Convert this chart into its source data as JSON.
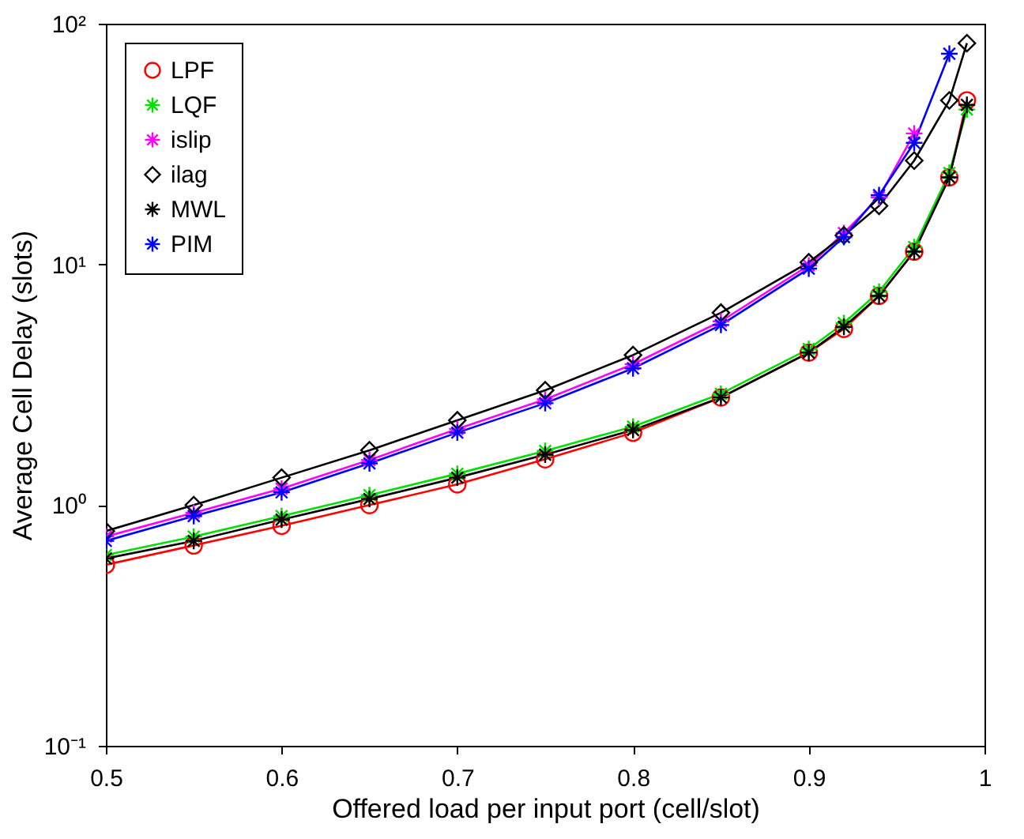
{
  "chart_data": {
    "type": "line",
    "xlabel": "Offered load per input port (cell/slot)",
    "ylabel": "Average Cell Delay (slots)",
    "x": [
      0.5,
      0.55,
      0.6,
      0.65,
      0.7,
      0.75,
      0.8,
      0.85,
      0.9,
      0.92,
      0.94,
      0.96,
      0.98,
      0.99
    ],
    "series": [
      {
        "name": "LPF",
        "color": "#ff0000",
        "marker": "circle",
        "values": [
          0.565,
          0.68,
          0.82,
          1.0,
          1.22,
          1.55,
          2.0,
          2.8,
          4.3,
          5.4,
          7.4,
          11.3,
          23,
          48
        ]
      },
      {
        "name": "LQF",
        "color": "#00e000",
        "marker": "cross",
        "values": [
          0.62,
          0.74,
          0.9,
          1.1,
          1.35,
          1.68,
          2.12,
          2.9,
          4.45,
          5.7,
          7.7,
          11.8,
          24,
          44
        ]
      },
      {
        "name": "islip",
        "color": "#ff00ff",
        "marker": "cross",
        "values": [
          0.74,
          0.93,
          1.17,
          1.54,
          2.07,
          2.75,
          3.85,
          5.8,
          9.9,
          13.5,
          19,
          35,
          null,
          null
        ]
      },
      {
        "name": "ilag",
        "color": "#000000",
        "marker": "diamond",
        "values": [
          0.78,
          1.0,
          1.3,
          1.69,
          2.25,
          3.0,
          4.2,
          6.3,
          10.2,
          13.2,
          17.5,
          27,
          48,
          83
        ]
      },
      {
        "name": "MWL",
        "color": "#000000",
        "marker": "cross",
        "values": [
          0.6,
          0.71,
          0.87,
          1.06,
          1.3,
          1.62,
          2.05,
          2.8,
          4.3,
          5.5,
          7.4,
          11.3,
          23,
          46
        ]
      },
      {
        "name": "PIM",
        "color": "#0000ff",
        "marker": "cross",
        "values": [
          0.71,
          0.9,
          1.13,
          1.49,
          2.0,
          2.65,
          3.7,
          5.6,
          9.6,
          13,
          19.4,
          32,
          75,
          null
        ]
      }
    ],
    "xlim": [
      0.5,
      1
    ],
    "xticks": [
      0.5,
      0.6,
      0.7,
      0.8,
      0.9,
      1
    ],
    "ylim": [
      0.1,
      100
    ],
    "yticks": [
      {
        "value": 0.1,
        "label": "10⁻¹"
      },
      {
        "value": 1,
        "label": "10⁰"
      },
      {
        "value": 10,
        "label": "10¹"
      },
      {
        "value": 100,
        "label": "10²"
      }
    ],
    "log": true,
    "grid": false,
    "legend": "top left",
    "line_style": "solid"
  }
}
